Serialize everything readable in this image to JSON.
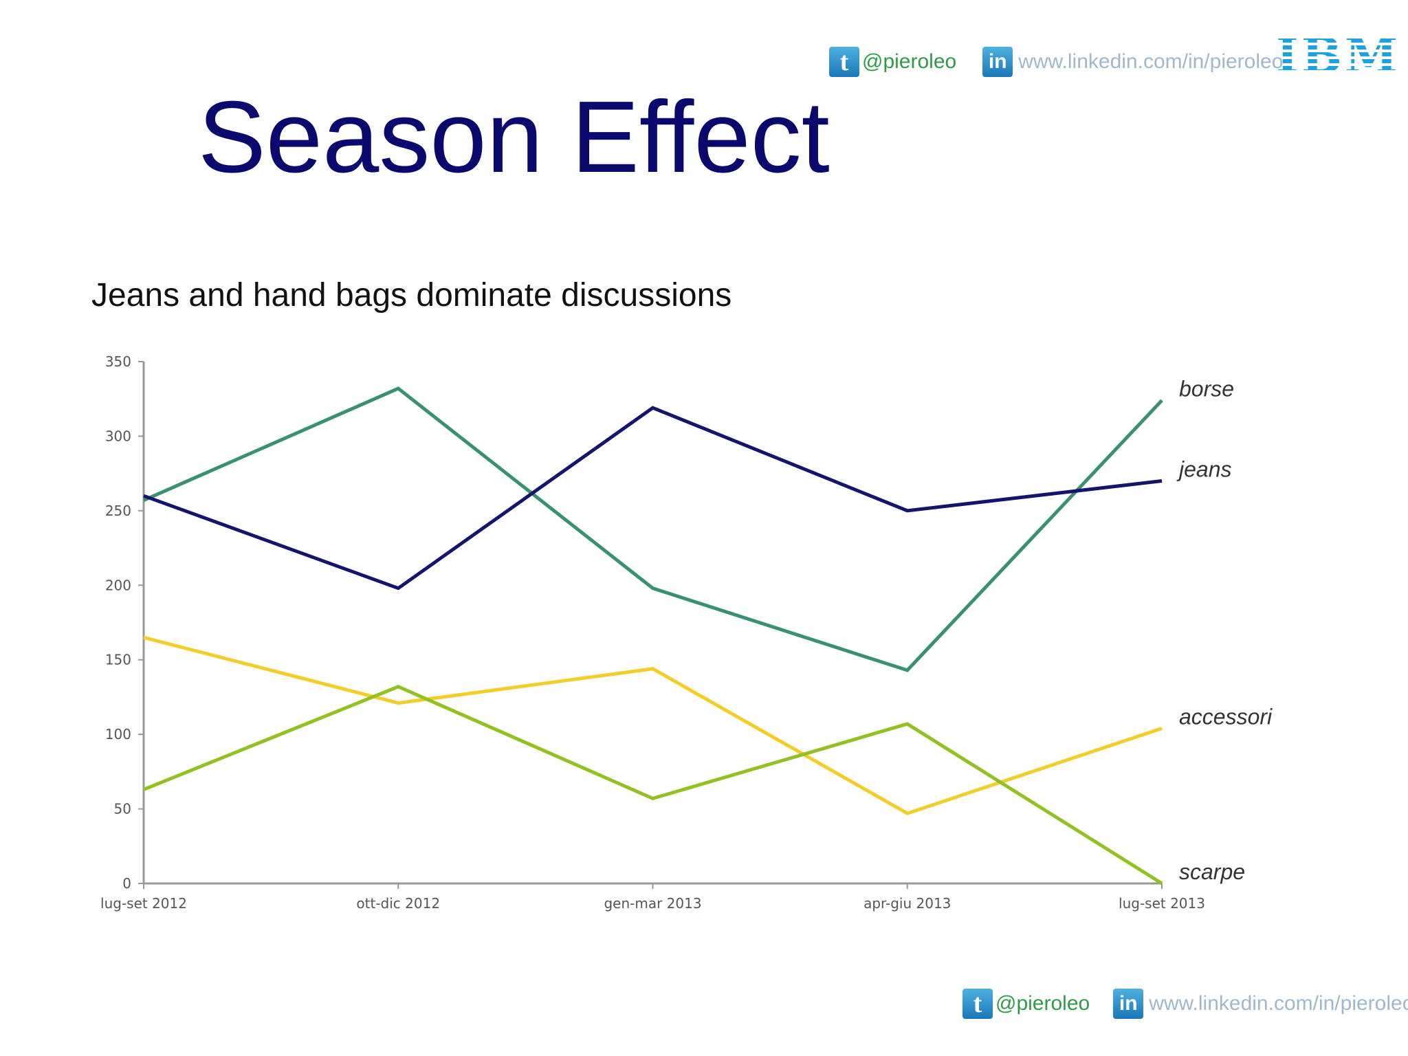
{
  "header": {
    "twitter_handle": "@pieroleo",
    "linkedin_url": "www.linkedin.com/in/pieroleo",
    "logo_text": "IBM",
    "twitter_icon": "twitter-icon",
    "linkedin_icon": "linkedin-icon"
  },
  "title": "Season Effect",
  "subtitle": "Jeans and hand bags dominate discussions",
  "footer": {
    "twitter_handle": "@pieroleo",
    "linkedin_url": "www.linkedin.com/in/pieroleo"
  },
  "chart_data": {
    "type": "line",
    "categories": [
      "lug-set 2012",
      "ott-dic 2012",
      "gen-mar 2013",
      "apr-giu 2013",
      "lug-set 2013"
    ],
    "ylim": [
      0,
      350
    ],
    "yticks": [
      0,
      50,
      100,
      150,
      200,
      250,
      300,
      350
    ],
    "grid": false,
    "legend": "end-of-line labels",
    "series": [
      {
        "name": "borse",
        "color": "#3a9170",
        "values": [
          257,
          332,
          198,
          143,
          324
        ]
      },
      {
        "name": "jeans",
        "color": "#14146e",
        "values": [
          260,
          198,
          319,
          250,
          270
        ]
      },
      {
        "name": "accessori",
        "color": "#f5cd2b",
        "values": [
          165,
          121,
          144,
          47,
          104
        ]
      },
      {
        "name": "scarpe",
        "color": "#93c123",
        "values": [
          63,
          132,
          57,
          107,
          0
        ]
      }
    ]
  }
}
